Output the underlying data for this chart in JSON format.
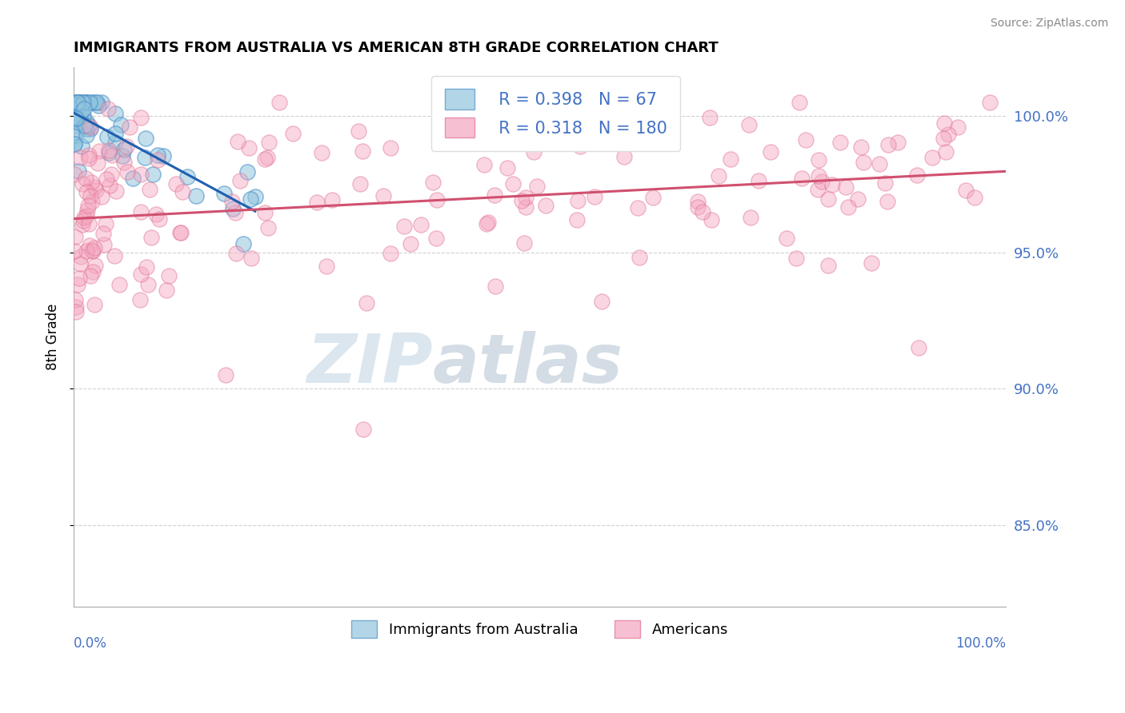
{
  "title": "IMMIGRANTS FROM AUSTRALIA VS AMERICAN 8TH GRADE CORRELATION CHART",
  "source": "Source: ZipAtlas.com",
  "ylabel": "8th Grade",
  "legend_blue_label": "Immigrants from Australia",
  "legend_pink_label": "Americans",
  "blue_R": 0.398,
  "blue_N": 67,
  "pink_R": 0.318,
  "pink_N": 180,
  "blue_color": "#92c5de",
  "pink_color": "#f4a6c0",
  "blue_edge_color": "#4a90c8",
  "pink_edge_color": "#e07090",
  "blue_line_color": "#2060b0",
  "pink_line_color": "#d05070",
  "label_color": "#4472c4",
  "yticks": [
    85.0,
    90.0,
    95.0,
    100.0
  ],
  "ymin": 82.0,
  "ymax": 101.8,
  "xmin": 0.0,
  "xmax": 100.0
}
